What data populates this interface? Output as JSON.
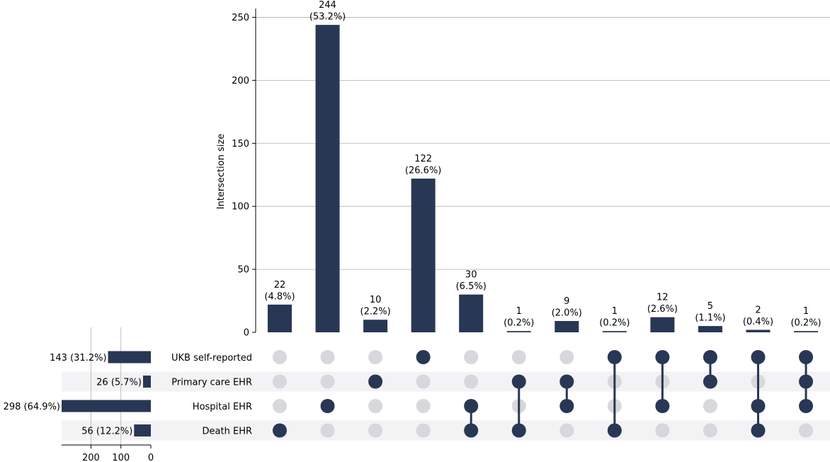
{
  "chart_data": {
    "type": "upset",
    "colors": {
      "bar": "#283754",
      "dot_active": "#283754",
      "dot_inactive": "#d6d8dd",
      "stripe": "#f3f3f5",
      "grid": "#b0b0b0"
    },
    "intersection_bars": {
      "ylabel": "Intersection size",
      "ylim": [
        0,
        257
      ],
      "yticks": [
        0,
        50,
        100,
        150,
        200,
        250
      ],
      "grid": true,
      "values": [
        22,
        244,
        10,
        122,
        30,
        1,
        9,
        1,
        12,
        5,
        2,
        1
      ],
      "labels": [
        "22",
        "244",
        "10",
        "122",
        "30",
        "1",
        "9",
        "1",
        "12",
        "5",
        "2",
        "1"
      ],
      "percent_labels": [
        "(4.8%)",
        "(53.2%)",
        "(2.2%)",
        "(26.6%)",
        "(6.5%)",
        "(0.2%)",
        "(2.0%)",
        "(0.2%)",
        "(2.6%)",
        "(1.1%)",
        "(0.4%)",
        "(0.2%)"
      ]
    },
    "sets": [
      {
        "name": "UKB self-reported",
        "size": 143,
        "label": "143 (31.2%)"
      },
      {
        "name": "Primary care EHR",
        "size": 26,
        "label": "26 (5.7%)"
      },
      {
        "name": "Hospital EHR",
        "size": 298,
        "label": "298 (64.9%)"
      },
      {
        "name": "Death EHR",
        "size": 56,
        "label": "56 (12.2%)"
      }
    ],
    "set_size_axis": {
      "xlim": [
        0,
        298
      ],
      "ticks": [
        200,
        100,
        0
      ],
      "tick_labels": [
        "200",
        "100",
        "0"
      ],
      "inverted": true,
      "grid": true
    },
    "membership": [
      [
        0,
        0,
        0,
        1
      ],
      [
        0,
        0,
        1,
        0
      ],
      [
        0,
        1,
        0,
        0
      ],
      [
        1,
        0,
        0,
        0
      ],
      [
        0,
        0,
        1,
        1
      ],
      [
        0,
        1,
        0,
        1
      ],
      [
        0,
        1,
        1,
        0
      ],
      [
        1,
        0,
        0,
        1
      ],
      [
        1,
        0,
        1,
        0
      ],
      [
        1,
        1,
        0,
        0
      ],
      [
        1,
        0,
        1,
        1
      ],
      [
        1,
        1,
        1,
        0
      ]
    ]
  }
}
